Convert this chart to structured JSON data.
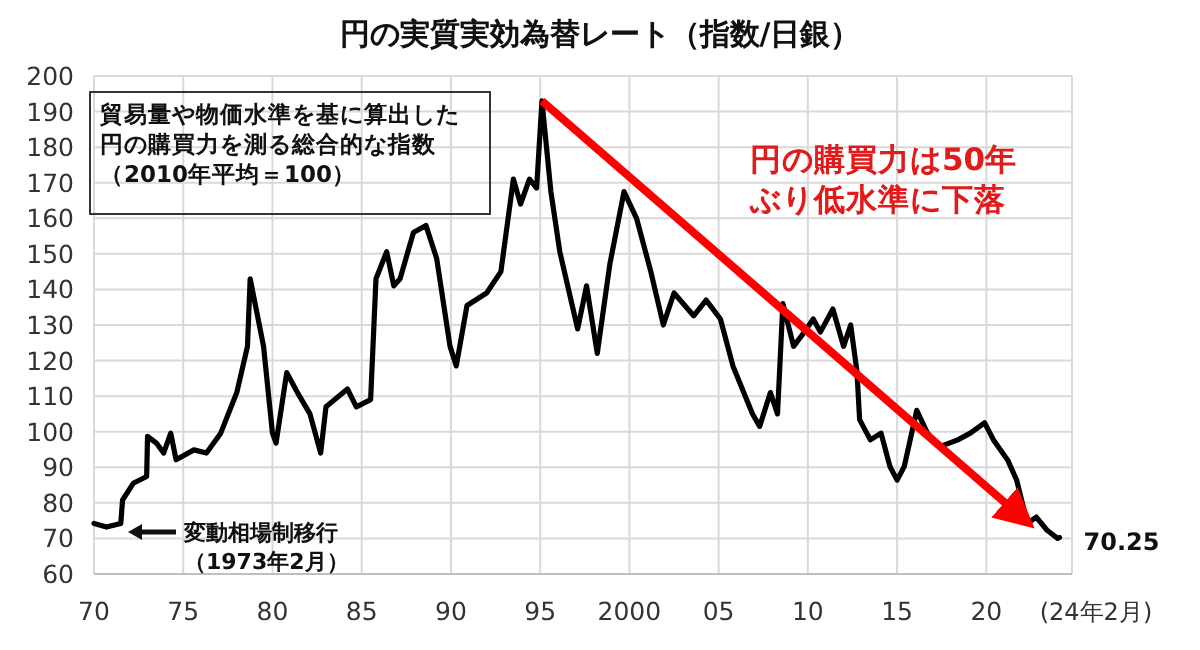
{
  "chart_data": {
    "type": "line",
    "title": "円の実質実効為替レート（指数/日銀）",
    "xlim": [
      1970,
      2024.8
    ],
    "xticks": [
      {
        "value": 1970,
        "label": "70"
      },
      {
        "value": 1975,
        "label": "75"
      },
      {
        "value": 1980,
        "label": "80"
      },
      {
        "value": 1985,
        "label": "85"
      },
      {
        "value": 1990,
        "label": "90"
      },
      {
        "value": 1995,
        "label": "95"
      },
      2000,
      {
        "value": 2005,
        "label": "05"
      },
      {
        "value": 2010,
        "label": "10"
      },
      {
        "value": 2015,
        "label": "15"
      },
      {
        "value": 2020,
        "label": "20"
      }
    ],
    "ylim": [
      60,
      200
    ],
    "yticks": [
      60,
      70,
      80,
      90,
      100,
      110,
      120,
      130,
      140,
      150,
      160,
      170,
      180,
      190,
      200
    ],
    "grid": true,
    "line_style": "solid",
    "series": [
      {
        "color": "#000000",
        "x": [
          1970.0,
          1970.7,
          1971.5,
          1971.6,
          1972.2,
          1972.95,
          1973.0,
          1973.5,
          1973.9,
          1974.3,
          1974.6,
          1975.6,
          1976.3,
          1977.1,
          1978.0,
          1978.6,
          1978.75,
          1979.5,
          1980.0,
          1980.2,
          1980.8,
          1981.4,
          1982.1,
          1982.7,
          1983.0,
          1984.2,
          1984.7,
          1985.5,
          1985.8,
          1986.4,
          1986.8,
          1987.15,
          1987.9,
          1988.6,
          1989.2,
          1989.95,
          1990.3,
          1990.9,
          1992.0,
          1992.8,
          1993.5,
          1993.9,
          1994.4,
          1994.8,
          1995.1,
          1995.6,
          1996.1,
          1997.1,
          1997.6,
          1998.2,
          1998.9,
          1999.7,
          2000.4,
          2001.2,
          2001.9,
          2002.5,
          2003.6,
          2004.3,
          2005.1,
          2005.8,
          2006.9,
          2007.3,
          2007.9,
          2008.3,
          2008.6,
          2009.2,
          2009.8,
          2010.3,
          2010.7,
          2011.4,
          2012.0,
          2012.4,
          2012.75,
          2012.9,
          2013.5,
          2014.1,
          2014.6,
          2015.0,
          2015.4,
          2016.1,
          2016.7,
          2017.4,
          2018.4,
          2019.1,
          2019.9,
          2020.4,
          2021.2,
          2021.7,
          2022.3,
          2022.8,
          2023.4,
          2024.0,
          2024.1
        ],
        "values": [
          74.2,
          73.2,
          74.2,
          80.8,
          85.5,
          87.4,
          98.7,
          96.8,
          94,
          99.6,
          92.1,
          94.9,
          94,
          99.6,
          111,
          124,
          143,
          124,
          99.6,
          96.8,
          116.6,
          111,
          105,
          94,
          107,
          112,
          107,
          109,
          143,
          150.6,
          141,
          143,
          156,
          158,
          148.7,
          124,
          118.5,
          135.5,
          139,
          145,
          171,
          164,
          171,
          168.5,
          193,
          167.5,
          150.6,
          128.9,
          141,
          122,
          147,
          167.5,
          160,
          145,
          130,
          139,
          132.6,
          137,
          131.7,
          118.5,
          105,
          101.5,
          111,
          105,
          136,
          124,
          128,
          131.7,
          128,
          134.5,
          124,
          130,
          117,
          103.4,
          97.7,
          99.6,
          90.2,
          86.4,
          90.2,
          106,
          99.6,
          95.8,
          97.7,
          99.6,
          102.5,
          97.7,
          92,
          86.4,
          74.2,
          76,
          72.3,
          70,
          70.25
        ]
      },
      {
        "type": "line",
        "color": "#ff0000",
        "x": [
          1995.1,
          2022.2
        ],
        "values": [
          193,
          75
        ]
      }
    ],
    "annotations": [
      "貿易量や物価水準を基に算出した円の購買力を測る総合的な指数（2010年平均＝100）",
      "円の購買力は50年ぶり低水準に下落",
      "変動相場制移行（1973年2月）",
      {
        "text": "70.25",
        "x": 2024.1,
        "y": 70.25
      },
      "(24年2月)"
    ]
  }
}
